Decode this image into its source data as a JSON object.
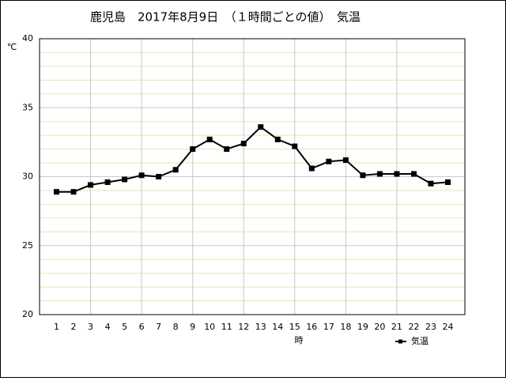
{
  "chart_data": {
    "type": "line",
    "title": "鹿児島　2017年8月9日　（１時間ごとの値）　気温",
    "y_label": "℃",
    "x_label": "時",
    "x": [
      1,
      2,
      3,
      4,
      5,
      6,
      7,
      8,
      9,
      10,
      11,
      12,
      13,
      14,
      15,
      16,
      17,
      18,
      19,
      20,
      21,
      22,
      23,
      24
    ],
    "series": [
      {
        "name": "気温",
        "color": "#000000",
        "values": [
          28.9,
          28.9,
          29.4,
          29.6,
          29.8,
          30.1,
          30.0,
          30.5,
          32.0,
          32.7,
          32.0,
          32.4,
          33.6,
          32.7,
          32.2,
          30.6,
          31.1,
          31.2,
          30.1,
          30.2,
          30.2,
          30.2,
          29.5,
          29.6
        ]
      }
    ],
    "xlim": [
      0,
      25
    ],
    "xticks": [
      1,
      2,
      3,
      4,
      5,
      6,
      7,
      8,
      9,
      10,
      11,
      12,
      13,
      14,
      15,
      16,
      17,
      18,
      19,
      20,
      21,
      22,
      23,
      24
    ],
    "x_grid": [
      3,
      6,
      9,
      12,
      15,
      18,
      21
    ],
    "ylim": [
      20,
      40
    ],
    "yticks": [
      20,
      25,
      30,
      35,
      40
    ],
    "minor_yticks": [
      21,
      22,
      23,
      24,
      26,
      27,
      28,
      29,
      31,
      32,
      33,
      34,
      36,
      37,
      38,
      39
    ],
    "grid": true,
    "legend": "bottom-right"
  }
}
